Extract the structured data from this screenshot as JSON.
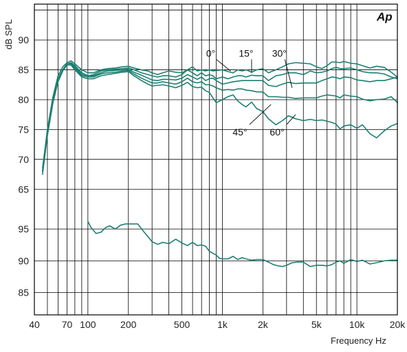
{
  "logo": "Ap",
  "chart_data": {
    "type": "line",
    "xlabel": "Frequency Hz",
    "ylabel": "dB SPL",
    "x_scale": "log",
    "xlim": [
      40,
      20000
    ],
    "grid": true,
    "line_color": "#1a7f70",
    "x_tick_labels": [
      {
        "value": 40,
        "label": "40"
      },
      {
        "value": 70,
        "label": "70"
      },
      {
        "value": 100,
        "label": "100"
      },
      {
        "value": 200,
        "label": "200"
      },
      {
        "value": 500,
        "label": "500"
      },
      {
        "value": 1000,
        "label": "1k"
      },
      {
        "value": 2000,
        "label": "2k"
      },
      {
        "value": 5000,
        "label": "5k"
      },
      {
        "value": 10000,
        "label": "10k"
      },
      {
        "value": 20000,
        "label": "20k"
      }
    ],
    "x_grid": [
      40,
      50,
      60,
      70,
      80,
      90,
      100,
      200,
      300,
      400,
      500,
      600,
      700,
      800,
      900,
      1000,
      2000,
      3000,
      4000,
      5000,
      6000,
      7000,
      8000,
      9000,
      10000,
      20000
    ],
    "panels": [
      {
        "id": "upper",
        "ylim": [
          61,
          96
        ],
        "y_ticks": [
          65,
          70,
          75,
          80,
          85,
          90
        ],
        "y_grid": [
          65,
          70,
          75,
          80,
          85,
          90,
          95
        ],
        "annotations": [
          {
            "label": "0°",
            "x": 820,
            "y": 87.2,
            "target": [
              1150,
              84.8
            ]
          },
          {
            "label": "15°",
            "x": 1500,
            "y": 87.2,
            "target": [
              1650,
              84.5
            ]
          },
          {
            "label": "30°",
            "x": 2650,
            "y": 87.2,
            "target": [
              3300,
              82.0
            ]
          },
          {
            "label": "45°",
            "x": 1350,
            "y": 74.0,
            "target": [
              2300,
              79.2
            ]
          },
          {
            "label": "60°",
            "x": 2550,
            "y": 74.0,
            "target": [
              3500,
              77.5
            ]
          }
        ],
        "series": [
          {
            "name": "0°",
            "x": [
              46,
              50,
              55,
              60,
              65,
              70,
              75,
              80,
              90,
              100,
              110,
              125,
              140,
              160,
              180,
              200,
              220,
              250,
              280,
              300,
              330,
              360,
              400,
              450,
              500,
              550,
              600,
              650,
              700,
              750,
              800,
              850,
              900,
              1000,
              1100,
              1200,
              1300,
              1400,
              1500,
              1650,
              1800,
              2000,
              2200,
              2500,
              2800,
              3100,
              3500,
              4000,
              4500,
              5000,
              5500,
              6000,
              6500,
              7000,
              7500,
              8000,
              9000,
              10000,
              11000,
              12500,
              14000,
              16000,
              18000,
              20000
            ],
            "y": [
              68.5,
              75,
              80.5,
              84,
              85.5,
              86.2,
              86.5,
              86,
              85,
              84.5,
              84.5,
              85,
              85.2,
              85.3,
              85.5,
              85.6,
              85.3,
              85,
              84.8,
              84.5,
              84.2,
              84.5,
              84.8,
              84.6,
              84.5,
              85,
              85.5,
              84.8,
              85,
              84.8,
              85,
              84.8,
              84.9,
              85,
              84.7,
              84.5,
              85,
              84.8,
              85,
              84.6,
              85,
              85.2,
              84.5,
              85,
              85.5,
              86,
              86.2,
              86.1,
              86,
              85.5,
              85.2,
              85.7,
              86.3,
              86.3,
              86.2,
              86.4,
              86.1,
              86,
              85.7,
              85.3,
              85.6,
              85.4,
              84.6,
              83.8
            ]
          },
          {
            "name": "15°",
            "x": [
              46,
              50,
              55,
              60,
              65,
              70,
              75,
              80,
              90,
              100,
              110,
              125,
              140,
              160,
              180,
              200,
              220,
              250,
              280,
              300,
              330,
              360,
              400,
              450,
              500,
              550,
              600,
              650,
              700,
              750,
              800,
              850,
              900,
              1000,
              1100,
              1200,
              1300,
              1400,
              1500,
              1650,
              1800,
              2000,
              2200,
              2500,
              2800,
              3100,
              3500,
              4000,
              4500,
              5000,
              5500,
              6000,
              6500,
              7000,
              7500,
              8000,
              9000,
              10000,
              11000,
              12500,
              14000,
              16000,
              18000,
              20000
            ],
            "y": [
              68,
              74.5,
              80,
              83.5,
              85,
              86,
              86.2,
              85.7,
              84.5,
              84,
              84.2,
              84.8,
              85,
              85.1,
              85.2,
              85.3,
              85,
              84.5,
              84.2,
              84,
              83.8,
              84,
              84,
              83.8,
              84.2,
              85,
              84.5,
              84,
              84.5,
              84,
              84.2,
              84,
              83.5,
              83.8,
              83.5,
              83.8,
              84,
              84,
              83.8,
              84.1,
              84,
              84,
              83.2,
              84,
              84.2,
              84.5,
              84.5,
              84.2,
              84.8,
              84.5,
              84.6,
              84.8,
              85.2,
              85.4,
              85.2,
              85.2,
              85.3,
              85,
              84.7,
              84.5,
              84.5,
              84.3,
              83.8,
              83.5
            ]
          },
          {
            "name": "30°",
            "x": [
              46,
              50,
              55,
              60,
              65,
              70,
              75,
              80,
              90,
              100,
              110,
              125,
              140,
              160,
              180,
              200,
              220,
              250,
              280,
              300,
              330,
              360,
              400,
              450,
              500,
              550,
              600,
              650,
              700,
              750,
              800,
              850,
              900,
              1000,
              1100,
              1200,
              1300,
              1400,
              1500,
              1650,
              1800,
              2000,
              2200,
              2500,
              2800,
              3100,
              3500,
              4000,
              4500,
              5000,
              5500,
              6000,
              6500,
              7000,
              7500,
              8000,
              9000,
              10000,
              11000,
              12500,
              14000,
              16000,
              18000,
              20000
            ],
            "y": [
              68,
              74.5,
              80,
              83.5,
              85,
              86,
              86,
              85.5,
              84.2,
              84,
              84,
              84.5,
              84.8,
              84.9,
              85,
              85.1,
              84.6,
              84.1,
              83.6,
              83.3,
              83.2,
              83.4,
              83.4,
              83.3,
              83.6,
              84.2,
              83.8,
              83.4,
              83.8,
              83.2,
              83.5,
              83.6,
              83.2,
              82.6,
              82.8,
              83,
              83.1,
              83.2,
              83.2,
              83.2,
              83.2,
              83.2,
              82.4,
              82.2,
              82.6,
              82.9,
              82.7,
              82.8,
              82.8,
              82.8,
              83.2,
              83.5,
              83.8,
              83.7,
              83.5,
              83.8,
              83.7,
              83.3,
              83.2,
              83,
              83.2,
              83.2,
              83.5,
              83.8
            ]
          },
          {
            "name": "45°",
            "x": [
              46,
              50,
              55,
              60,
              65,
              70,
              75,
              80,
              90,
              100,
              110,
              125,
              140,
              160,
              180,
              200,
              220,
              250,
              280,
              300,
              330,
              360,
              400,
              450,
              500,
              550,
              600,
              650,
              700,
              750,
              800,
              850,
              900,
              1000,
              1100,
              1200,
              1300,
              1400,
              1500,
              1650,
              1800,
              2000,
              2200,
              2500,
              2800,
              3100,
              3500,
              4000,
              4500,
              5000,
              5500,
              6000,
              6500,
              7000,
              7500,
              8000,
              9000,
              10000,
              11000,
              12500,
              14000,
              16000,
              18000,
              20000
            ],
            "y": [
              68,
              74.5,
              80,
              83.5,
              85,
              86,
              86,
              85.3,
              84,
              83.8,
              83.8,
              84.3,
              84.5,
              84.6,
              84.8,
              84.9,
              84.3,
              83.6,
              83.1,
              82.8,
              82.8,
              83,
              82.8,
              82.6,
              83,
              83.6,
              83,
              82.8,
              83,
              82.5,
              82.5,
              82.3,
              82,
              81.6,
              81.7,
              81.6,
              81.8,
              81.8,
              81.6,
              81.5,
              81.3,
              81.3,
              80.5,
              80.5,
              80.4,
              80.4,
              80.2,
              80.3,
              80.3,
              80.3,
              80.6,
              80.8,
              80.7,
              80.6,
              80.3,
              80.8,
              80.6,
              80.5,
              80.1,
              79.8,
              80,
              80.1,
              80.5,
              79.5
            ]
          },
          {
            "name": "60°",
            "x": [
              46,
              50,
              55,
              60,
              65,
              70,
              75,
              80,
              90,
              100,
              110,
              125,
              140,
              160,
              180,
              200,
              220,
              250,
              280,
              300,
              330,
              360,
              400,
              450,
              500,
              550,
              600,
              650,
              700,
              750,
              800,
              850,
              900,
              1000,
              1100,
              1200,
              1300,
              1400,
              1500,
              1650,
              1800,
              2000,
              2200,
              2500,
              2800,
              3100,
              3500,
              4000,
              4500,
              5000,
              5500,
              6000,
              6500,
              7000,
              7500,
              8000,
              9000,
              10000,
              11000,
              12500,
              14000,
              16000,
              18000,
              20000
            ],
            "y": [
              67.5,
              74,
              79.5,
              83,
              84.8,
              85.8,
              85.8,
              85,
              83.8,
              83.5,
              83.5,
              84,
              84.2,
              84.4,
              84.6,
              84.7,
              84,
              83.2,
              82.6,
              82.3,
              82.4,
              82.5,
              82.3,
              82,
              82.4,
              82.9,
              82.2,
              82,
              82.1,
              81.5,
              81.2,
              80.3,
              79.5,
              80,
              80.5,
              80.8,
              79.8,
              79.2,
              78.8,
              79.6,
              78.5,
              78,
              76.8,
              75.8,
              76.5,
              77.3,
              76.8,
              76.5,
              76.7,
              76.5,
              76.6,
              76.4,
              76.2,
              75.9,
              75.1,
              75.6,
              75.8,
              75.2,
              75.8,
              74.3,
              73.6,
              74.8,
              75.6,
              76
            ]
          }
        ]
      },
      {
        "id": "lower",
        "ylim": [
          81.5,
          97.5
        ],
        "y_ticks": [
          85,
          90,
          95
        ],
        "y_grid": [
          85,
          90,
          95
        ],
        "series": [
          {
            "name": "",
            "x": [
              100,
              105,
              115,
              125,
              135,
              145,
              160,
              175,
              190,
              210,
              235,
              260,
              285,
              300,
              330,
              360,
              400,
              450,
              500,
              550,
              600,
              650,
              700,
              750,
              800,
              850,
              900,
              950,
              1000,
              1100,
              1200,
              1300,
              1400,
              1500,
              1650,
              1800,
              2000,
              2200,
              2400,
              2600,
              2800,
              3000,
              3300,
              3600,
              4000,
              4500,
              5000,
              5500,
              6000,
              6500,
              7000,
              7500,
              8000,
              9000,
              10000,
              11000,
              12500,
              14000,
              16000,
              18000,
              20000
            ],
            "y": [
              96.2,
              95.3,
              94.3,
              94.5,
              95.2,
              95.5,
              95,
              95.6,
              95.8,
              95.8,
              95.8,
              94.6,
              93.6,
              93,
              92.6,
              92.9,
              92.7,
              93.4,
              92.8,
              92.4,
              92.9,
              92.4,
              92.5,
              92.3,
              91.5,
              91.2,
              90.9,
              90.4,
              90.3,
              90.3,
              90.7,
              90.2,
              90.5,
              90.3,
              90.1,
              90.2,
              90.2,
              89.8,
              89.4,
              89.2,
              89.1,
              89.3,
              89.7,
              89.8,
              89.8,
              89.1,
              89.3,
              89.3,
              89.2,
              89.4,
              89.8,
              90,
              89.6,
              90.2,
              89.9,
              90.1,
              89.5,
              89.7,
              90,
              90.1,
              90.1
            ]
          }
        ]
      }
    ]
  }
}
